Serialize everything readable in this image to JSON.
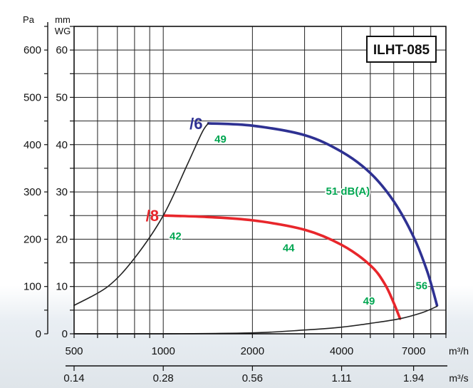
{
  "chart_data": {
    "type": "line",
    "title": "ILHT-085",
    "x_scale": "log",
    "xlim": [
      500,
      9000
    ],
    "ylim_pa": [
      0,
      650
    ],
    "ylabel_pa": "Pa",
    "ylabel_mm": [
      "mm",
      "WG"
    ],
    "y_ticks_pa": [
      0,
      100,
      200,
      300,
      400,
      500,
      600
    ],
    "y_ticks_mm": [
      0,
      10,
      20,
      30,
      40,
      50,
      60
    ],
    "x_ticks_m3h": [
      {
        "value": 500,
        "label": "500"
      },
      {
        "value": 1000,
        "label": "1000"
      },
      {
        "value": 2000,
        "label": "2000"
      },
      {
        "value": 4000,
        "label": "4000"
      },
      {
        "value": 7000,
        "label": "7000"
      }
    ],
    "x_unit_m3h": "m³/h",
    "x_ticks_m3s": [
      {
        "value": 500,
        "label": "0.14"
      },
      {
        "value": 1000,
        "label": "0.28"
      },
      {
        "value": 2000,
        "label": "0.56"
      },
      {
        "value": 4000,
        "label": "1.11"
      },
      {
        "value": 7000,
        "label": "1.94"
      }
    ],
    "x_unit_m3s": "m³/s",
    "grid": true,
    "series": [
      {
        "name": "/6",
        "color": "#2e3192",
        "x": [
          1420,
          2000,
          3000,
          4000,
          5000,
          6000,
          7000,
          7800,
          8400
        ],
        "y": [
          445,
          440,
          420,
          385,
          340,
          280,
          205,
          130,
          60
        ]
      },
      {
        "name": "/8",
        "color": "#e8262b",
        "x": [
          1010,
          1400,
          2000,
          3000,
          4000,
          5000,
          5600,
          6000,
          6300
        ],
        "y": [
          250,
          247,
          240,
          220,
          188,
          145,
          105,
          65,
          32
        ]
      },
      {
        "name": "",
        "color": "#222222",
        "x": [
          500,
          650,
          800,
          1000,
          1200,
          1350,
          1420
        ],
        "y": [
          60,
          100,
          160,
          250,
          355,
          425,
          445
        ]
      },
      {
        "name": "",
        "color": "#222222",
        "x": [
          500,
          1000,
          2000,
          3000,
          4000,
          5000,
          6300,
          7500,
          8400
        ],
        "y": [
          0,
          0,
          2,
          8,
          14,
          22,
          32,
          45,
          58
        ]
      }
    ],
    "annotations": [
      {
        "text": "49",
        "x": 1560,
        "y": 410,
        "color": "#00a651"
      },
      {
        "text": "51 dB(A)",
        "x": 4200,
        "y": 300,
        "color": "#00a651"
      },
      {
        "text": "42",
        "x": 1100,
        "y": 205,
        "color": "#00a651"
      },
      {
        "text": "44",
        "x": 2650,
        "y": 180,
        "color": "#00a651"
      },
      {
        "text": "49",
        "x": 4950,
        "y": 68,
        "color": "#00a651"
      },
      {
        "text": "56",
        "x": 7450,
        "y": 100,
        "color": "#00a651"
      }
    ]
  }
}
